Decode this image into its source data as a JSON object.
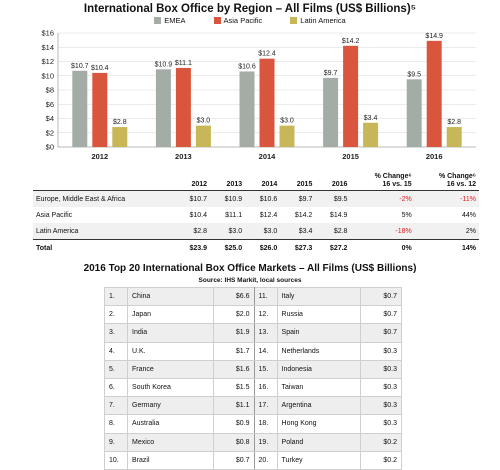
{
  "chart_title": "International Box Office by Region – All Films (US$ Billions)⁵",
  "chart_data": {
    "type": "bar",
    "categories": [
      "2012",
      "2013",
      "2014",
      "2015",
      "2016"
    ],
    "series": [
      {
        "name": "EMEA",
        "color": "#a3ada6",
        "values": [
          10.7,
          10.9,
          10.6,
          9.7,
          9.5
        ],
        "labels": [
          "$10.7",
          "$10.9",
          "$10.6",
          "$9.7",
          "$9.5"
        ]
      },
      {
        "name": "Asia Pacific",
        "color": "#d9553d",
        "values": [
          10.4,
          11.1,
          12.4,
          14.2,
          14.9
        ],
        "labels": [
          "$10.4",
          "$11.1",
          "$12.4",
          "$14.2",
          "$14.9"
        ]
      },
      {
        "name": "Latin America",
        "color": "#c7b758",
        "values": [
          2.8,
          3.0,
          3.0,
          3.4,
          2.8
        ],
        "labels": [
          "$2.8",
          "$3.0",
          "$3.0",
          "$3.4",
          "$2.8"
        ]
      }
    ],
    "ylim": [
      0,
      16
    ],
    "yticks": [
      "$0",
      "$2",
      "$4",
      "$6",
      "$8",
      "$10",
      "$12",
      "$14",
      "$16"
    ],
    "grid": true,
    "legend": "top"
  },
  "summary": {
    "headers": [
      "",
      "2012",
      "2013",
      "2014",
      "2015",
      "2016",
      "% Change⁶\n16 vs. 15",
      "% Change⁶\n16 vs. 12"
    ],
    "rows": [
      {
        "cells": [
          "Europe, Middle East & Africa",
          "$10.7",
          "$10.9",
          "$10.6",
          "$9.7",
          "$9.5",
          "-2%",
          "-11%"
        ],
        "neg": [
          6,
          7
        ]
      },
      {
        "cells": [
          "Asia Pacific",
          "$10.4",
          "$11.1",
          "$12.4",
          "$14.2",
          "$14.9",
          "5%",
          "44%"
        ],
        "neg": []
      },
      {
        "cells": [
          "Latin America",
          "$2.8",
          "$3.0",
          "$3.0",
          "$3.4",
          "$2.8",
          "-18%",
          "2%"
        ],
        "neg": [
          6
        ]
      }
    ],
    "total": [
      "Total",
      "$23.9",
      "$25.0",
      "$26.0",
      "$27.3",
      "$27.2",
      "0%",
      "14%"
    ]
  },
  "markets_title": "2016 Top 20 International Box Office Markets – All Films (US$ Billions)",
  "markets_source": "Source: IHS Markit, local sources",
  "markets": [
    [
      "1.",
      "China",
      "$6.6",
      "11.",
      "Italy",
      "$0.7"
    ],
    [
      "2.",
      "Japan",
      "$2.0",
      "12.",
      "Russia",
      "$0.7"
    ],
    [
      "3.",
      "India",
      "$1.9",
      "13.",
      "Spain",
      "$0.7"
    ],
    [
      "4.",
      "U.K.",
      "$1.7",
      "14.",
      "Netherlands",
      "$0.3"
    ],
    [
      "5.",
      "France",
      "$1.6",
      "15.",
      "Indonesia",
      "$0.3"
    ],
    [
      "6.",
      "South Korea",
      "$1.5",
      "16.",
      "Taiwan",
      "$0.3"
    ],
    [
      "7.",
      "Germany",
      "$1.1",
      "17.",
      "Argentina",
      "$0.3"
    ],
    [
      "8.",
      "Australia",
      "$0.9",
      "18.",
      "Hong Kong",
      "$0.3"
    ],
    [
      "9.",
      "Mexico",
      "$0.8",
      "19.",
      "Poland",
      "$0.2"
    ],
    [
      "10.",
      "Brazil",
      "$0.7",
      "20.",
      "Turkey",
      "$0.2"
    ]
  ]
}
